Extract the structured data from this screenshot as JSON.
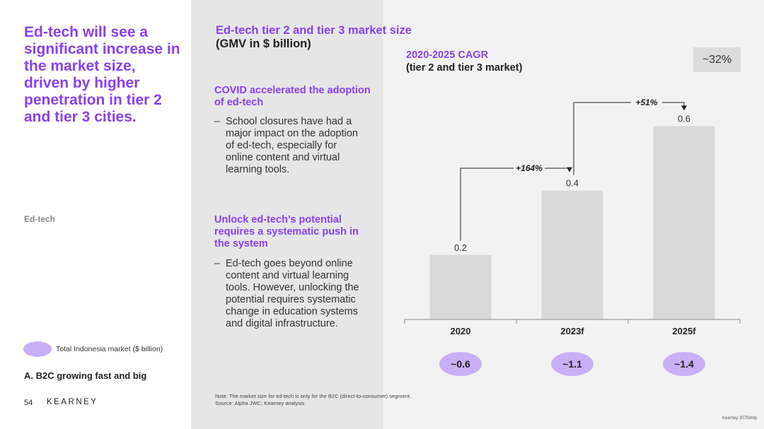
{
  "left": {
    "headline": "Ed-tech will see a significant increase in the market size, driven by higher penetration in tier 2 and tier 3 cities.",
    "section_tag": "Ed-tech",
    "legend_label": "Total Indonesia market ($ billion)",
    "subsection": "A. B2C growing fast and big",
    "page_number": "54",
    "brand": "KEARNEY"
  },
  "middle": {
    "chart_title": "Ed-tech tier 2 and tier 3 market size",
    "chart_subtitle": "(GMV in $ billion)",
    "heading1": "COVID accelerated the adoption of ed-tech",
    "bullet1": "School closures have had a major impact on the adoption of ed-tech, especially for online content and virtual learning tools.",
    "heading2": "Unlock ed-tech’s potential requires a systematic push in the system",
    "bullet2": "Ed-tech goes beyond online content and virtual learning tools. However, unlocking the potential requires systematic change in education systems and digital infrastructure.",
    "dash": "–",
    "note": "Note: The market size for ed-tech is only for the B2C (direct-to-consumer) segment.",
    "source": "Source: Alpha JWC; Kearney analysis"
  },
  "right": {
    "cagr_title": "2020-2025 CAGR",
    "cagr_subtitle": "(tier 2 and tier 3 market)",
    "cagr_value": "~32%",
    "ref": "Kearney 20759/dp"
  },
  "colors": {
    "accent": "#8a3ff0",
    "bar": "#d9d9d9",
    "oval": "#c9aff5"
  },
  "chart_data": {
    "type": "bar",
    "title": "Ed-tech tier 2 and tier 3 market size",
    "ylabel": "(GMV in $ billion)",
    "categories": [
      "2020",
      "2023f",
      "2025f"
    ],
    "values": [
      0.2,
      0.4,
      0.6
    ],
    "value_labels": [
      "0.2",
      "0.4",
      "0.6"
    ],
    "ylim": [
      0,
      0.6
    ],
    "growth": [
      {
        "from": "2020",
        "to": "2023f",
        "label": "+164%"
      },
      {
        "from": "2023f",
        "to": "2025f",
        "label": "+51%"
      }
    ],
    "total_market": [
      "~0.6",
      "~1.1",
      "~1.4"
    ],
    "cagr": "~32%"
  }
}
